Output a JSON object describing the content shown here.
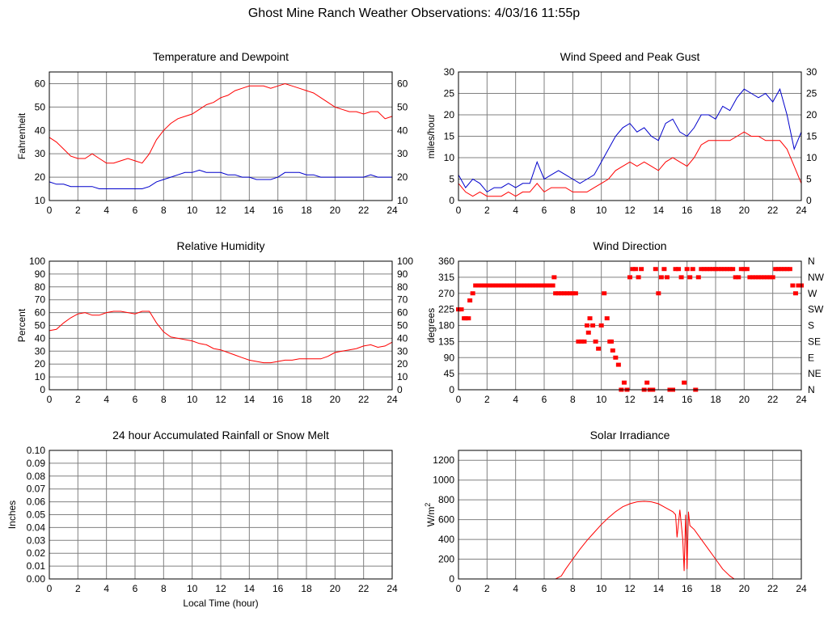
{
  "page": {
    "title": "Ghost Mine Ranch Weather Observations: 4/03/16 11:55p"
  },
  "colors": {
    "grid": "#808080",
    "frame": "#000000",
    "red": "#ff0000",
    "blue": "#0000cc"
  },
  "chart_data": [
    {
      "id": "temp",
      "type": "line",
      "title": "Temperature and Dewpoint",
      "xlabel": "",
      "ylabel": "Fahrenheit",
      "x_ticks": [
        0,
        2,
        4,
        6,
        8,
        10,
        12,
        14,
        16,
        18,
        20,
        22,
        24
      ],
      "y_ticks": [
        10,
        20,
        30,
        40,
        50,
        60
      ],
      "xlim": [
        0,
        24
      ],
      "ylim": [
        10,
        65
      ],
      "right_axis_ticks": [
        10,
        20,
        30,
        40,
        50,
        60
      ],
      "grid": true,
      "series": [
        {
          "color": "#ff0000",
          "x": [
            0,
            0.5,
            1,
            1.5,
            2,
            2.5,
            3,
            3.5,
            4,
            4.5,
            5,
            5.5,
            6,
            6.5,
            7,
            7.5,
            8,
            8.5,
            9,
            9.5,
            10,
            10.5,
            11,
            11.5,
            12,
            12.5,
            13,
            13.5,
            14,
            14.5,
            15,
            15.5,
            16,
            16.5,
            17,
            17.5,
            18,
            18.5,
            19,
            19.5,
            20,
            20.5,
            21,
            21.5,
            22,
            22.5,
            23,
            23.5,
            24
          ],
          "y": [
            37,
            35,
            32,
            29,
            28,
            28,
            30,
            28,
            26,
            26,
            27,
            28,
            27,
            26,
            30,
            36,
            40,
            43,
            45,
            46,
            47,
            49,
            51,
            52,
            54,
            55,
            57,
            58,
            59,
            59,
            59,
            58,
            59,
            60,
            59,
            58,
            57,
            56,
            54,
            52,
            50,
            49,
            48,
            48,
            47,
            48,
            48,
            45,
            46
          ]
        },
        {
          "color": "#0000cc",
          "x": [
            0,
            0.5,
            1,
            1.5,
            2,
            2.5,
            3,
            3.5,
            4,
            4.5,
            5,
            5.5,
            6,
            6.5,
            7,
            7.5,
            8,
            8.5,
            9,
            9.5,
            10,
            10.5,
            11,
            11.5,
            12,
            12.5,
            13,
            13.5,
            14,
            14.5,
            15,
            15.5,
            16,
            16.5,
            17,
            17.5,
            18,
            18.5,
            19,
            19.5,
            20,
            20.5,
            21,
            21.5,
            22,
            22.5,
            23,
            23.5,
            24
          ],
          "y": [
            18,
            17,
            17,
            16,
            16,
            16,
            16,
            15,
            15,
            15,
            15,
            15,
            15,
            15,
            16,
            18,
            19,
            20,
            21,
            22,
            22,
            23,
            22,
            22,
            22,
            21,
            21,
            20,
            20,
            19,
            19,
            19,
            20,
            22,
            22,
            22,
            21,
            21,
            20,
            20,
            20,
            20,
            20,
            20,
            20,
            21,
            20,
            20,
            20
          ]
        }
      ]
    },
    {
      "id": "wind",
      "type": "line",
      "title": "Wind Speed and Peak Gust",
      "xlabel": "",
      "ylabel": "miles/hour",
      "x_ticks": [
        0,
        2,
        4,
        6,
        8,
        10,
        12,
        14,
        16,
        18,
        20,
        22,
        24
      ],
      "y_ticks": [
        0,
        5,
        10,
        15,
        20,
        25,
        30
      ],
      "xlim": [
        0,
        24
      ],
      "ylim": [
        0,
        30
      ],
      "right_axis_ticks": [
        0,
        5,
        10,
        15,
        20,
        25,
        30
      ],
      "grid": true,
      "series": [
        {
          "color": "#0000cc",
          "x": [
            0,
            0.5,
            1,
            1.5,
            2,
            2.5,
            3,
            3.5,
            4,
            4.5,
            5,
            5.5,
            6,
            6.5,
            7,
            7.5,
            8,
            8.5,
            9,
            9.5,
            10,
            10.5,
            11,
            11.5,
            12,
            12.5,
            13,
            13.5,
            14,
            14.5,
            15,
            15.5,
            16,
            16.5,
            17,
            17.5,
            18,
            18.5,
            19,
            19.5,
            20,
            20.5,
            21,
            21.5,
            22,
            22.5,
            23,
            23.5,
            24
          ],
          "y": [
            6,
            3,
            5,
            4,
            2,
            3,
            3,
            4,
            3,
            4,
            4,
            9,
            5,
            6,
            7,
            6,
            5,
            4,
            5,
            6,
            9,
            12,
            15,
            17,
            18,
            16,
            17,
            15,
            14,
            18,
            19,
            16,
            15,
            17,
            20,
            20,
            19,
            22,
            21,
            24,
            26,
            25,
            24,
            25,
            23,
            26,
            20,
            12,
            16
          ]
        },
        {
          "color": "#ff0000",
          "x": [
            0,
            0.5,
            1,
            1.5,
            2,
            2.5,
            3,
            3.5,
            4,
            4.5,
            5,
            5.5,
            6,
            6.5,
            7,
            7.5,
            8,
            8.5,
            9,
            9.5,
            10,
            10.5,
            11,
            11.5,
            12,
            12.5,
            13,
            13.5,
            14,
            14.5,
            15,
            15.5,
            16,
            16.5,
            17,
            17.5,
            18,
            18.5,
            19,
            19.5,
            20,
            20.5,
            21,
            21.5,
            22,
            22.5,
            23,
            23.5,
            24
          ],
          "y": [
            4,
            2,
            1,
            2,
            1,
            1,
            1,
            2,
            1,
            2,
            2,
            4,
            2,
            3,
            3,
            3,
            2,
            2,
            2,
            3,
            4,
            5,
            7,
            8,
            9,
            8,
            9,
            8,
            7,
            9,
            10,
            9,
            8,
            10,
            13,
            14,
            14,
            14,
            14,
            15,
            16,
            15,
            15,
            14,
            14,
            14,
            12,
            8,
            4
          ]
        }
      ]
    },
    {
      "id": "rh",
      "type": "line",
      "title": "Relative Humidity",
      "xlabel": "",
      "ylabel": "Percent",
      "x_ticks": [
        0,
        2,
        4,
        6,
        8,
        10,
        12,
        14,
        16,
        18,
        20,
        22,
        24
      ],
      "y_ticks": [
        0,
        10,
        20,
        30,
        40,
        50,
        60,
        70,
        80,
        90,
        100
      ],
      "xlim": [
        0,
        24
      ],
      "ylim": [
        0,
        100
      ],
      "right_axis_ticks": [
        0,
        10,
        20,
        30,
        40,
        50,
        60,
        70,
        80,
        90,
        100
      ],
      "grid": true,
      "series": [
        {
          "color": "#ff0000",
          "x": [
            0,
            0.5,
            1,
            1.5,
            2,
            2.5,
            3,
            3.5,
            4,
            4.5,
            5,
            5.5,
            6,
            6.5,
            7,
            7.5,
            8,
            8.5,
            9,
            9.5,
            10,
            10.5,
            11,
            11.5,
            12,
            12.5,
            13,
            13.5,
            14,
            14.5,
            15,
            15.5,
            16,
            16.5,
            17,
            17.5,
            18,
            18.5,
            19,
            19.5,
            20,
            20.5,
            21,
            21.5,
            22,
            22.5,
            23,
            23.5,
            24
          ],
          "y": [
            46,
            47,
            52,
            56,
            59,
            60,
            58,
            58,
            60,
            61,
            61,
            60,
            59,
            61,
            61,
            52,
            45,
            41,
            40,
            39,
            38,
            36,
            35,
            32,
            31,
            29,
            27,
            25,
            23,
            22,
            21,
            21,
            22,
            23,
            23,
            24,
            24,
            24,
            24,
            26,
            29,
            30,
            31,
            32,
            34,
            35,
            33,
            34,
            37
          ]
        }
      ]
    },
    {
      "id": "dir",
      "type": "scatter",
      "title": "Wind Direction",
      "xlabel": "",
      "ylabel": "degrees",
      "x_ticks": [
        0,
        2,
        4,
        6,
        8,
        10,
        12,
        14,
        16,
        18,
        20,
        22,
        24
      ],
      "y_ticks": [
        0,
        45,
        90,
        135,
        180,
        225,
        270,
        315,
        360
      ],
      "xlim": [
        0,
        24
      ],
      "ylim": [
        0,
        360
      ],
      "right_axis_labels": [
        "N",
        "NE",
        "E",
        "SE",
        "S",
        "SW",
        "W",
        "NW",
        "N"
      ],
      "grid": true,
      "series": [
        {
          "color": "#ff0000",
          "x": [
            0,
            0.2,
            0.4,
            0.5,
            0.7,
            0.8,
            1.0,
            1.2,
            1.4,
            1.6,
            1.8,
            2.0,
            2.2,
            2.4,
            2.6,
            2.8,
            3.0,
            3.2,
            3.4,
            3.6,
            3.8,
            4.0,
            4.2,
            4.4,
            4.6,
            4.8,
            5.0,
            5.2,
            5.4,
            5.6,
            5.8,
            6.0,
            6.2,
            6.4,
            6.6,
            6.7,
            6.8,
            7.0,
            7.2,
            7.4,
            7.6,
            7.8,
            8.0,
            8.2,
            8.4,
            8.6,
            8.8,
            9.0,
            9.1,
            9.2,
            9.4,
            9.6,
            9.8,
            10.0,
            10.2,
            10.4,
            10.6,
            10.7,
            10.8,
            11.0,
            11.2,
            11.4,
            11.6,
            11.8,
            12.0,
            12.2,
            12.4,
            12.6,
            12.8,
            13.0,
            13.2,
            13.4,
            13.6,
            13.8,
            14.0,
            14.2,
            14.4,
            14.6,
            14.8,
            15.0,
            15.2,
            15.4,
            15.6,
            15.8,
            16.0,
            16.2,
            16.4,
            16.6,
            16.8,
            17.0,
            17.2,
            17.4,
            17.6,
            17.8,
            18.0,
            18.2,
            18.4,
            18.6,
            18.8,
            19.0,
            19.2,
            19.4,
            19.6,
            19.8,
            20.0,
            20.2,
            20.4,
            20.6,
            20.8,
            21.0,
            21.2,
            21.4,
            21.6,
            21.8,
            22.0,
            22.2,
            22.4,
            22.6,
            22.8,
            23.0,
            23.2,
            23.4,
            23.6,
            23.8,
            24.0
          ],
          "y": [
            225,
            225,
            200,
            200,
            200,
            250,
            270,
            292,
            292,
            292,
            292,
            292,
            292,
            292,
            292,
            292,
            292,
            292,
            292,
            292,
            292,
            292,
            292,
            292,
            292,
            292,
            292,
            292,
            292,
            292,
            292,
            292,
            292,
            292,
            292,
            315,
            270,
            270,
            270,
            270,
            270,
            270,
            270,
            270,
            135,
            135,
            135,
            180,
            160,
            200,
            180,
            135,
            115,
            180,
            270,
            200,
            135,
            135,
            110,
            90,
            70,
            0,
            20,
            0,
            315,
            338,
            338,
            315,
            338,
            0,
            20,
            0,
            0,
            338,
            270,
            315,
            338,
            315,
            0,
            0,
            338,
            338,
            315,
            20,
            338,
            315,
            338,
            0,
            315,
            338,
            338,
            338,
            338,
            338,
            338,
            338,
            338,
            338,
            338,
            338,
            338,
            315,
            315,
            338,
            338,
            338,
            315,
            315,
            315,
            315,
            315,
            315,
            315,
            315,
            315,
            338,
            338,
            338,
            338,
            338,
            338,
            292,
            270,
            292,
            292
          ]
        }
      ]
    },
    {
      "id": "rain",
      "type": "line",
      "title": "24 hour Accumulated Rainfall or Snow Melt",
      "xlabel": "Local Time (hour)",
      "ylabel": "Inches",
      "x_ticks": [
        0,
        2,
        4,
        6,
        8,
        10,
        12,
        14,
        16,
        18,
        20,
        22,
        24
      ],
      "y_ticks": [
        "0.00",
        "0.01",
        "0.02",
        "0.03",
        "0.04",
        "0.05",
        "0.06",
        "0.07",
        "0.08",
        "0.09",
        "0.10"
      ],
      "xlim": [
        0,
        24
      ],
      "ylim": [
        0,
        0.1
      ],
      "grid": true,
      "series": [
        {
          "color": "#ff0000",
          "x": [
            0,
            24
          ],
          "y": [
            0,
            0
          ]
        }
      ]
    },
    {
      "id": "solar",
      "type": "line",
      "title": "Solar Irradiance",
      "xlabel": "",
      "ylabel": "W/m",
      "ylabel_sup": "2",
      "x_ticks": [
        0,
        2,
        4,
        6,
        8,
        10,
        12,
        14,
        16,
        18,
        20,
        22,
        24
      ],
      "y_ticks": [
        0,
        200,
        400,
        600,
        800,
        1000,
        1200
      ],
      "xlim": [
        0,
        24
      ],
      "ylim": [
        0,
        1300
      ],
      "grid": true,
      "series": [
        {
          "color": "#ff0000",
          "x": [
            0,
            6.8,
            7.2,
            7.5,
            8,
            8.5,
            9,
            9.5,
            10,
            10.5,
            11,
            11.5,
            12,
            12.5,
            13,
            13.5,
            14,
            14.5,
            15,
            15.2,
            15.3,
            15.5,
            15.7,
            15.8,
            15.9,
            16.0,
            16.1,
            16.2,
            16.5,
            17,
            17.5,
            18,
            18.5,
            19,
            19.3,
            20,
            24
          ],
          "y": [
            0,
            0,
            30,
            100,
            200,
            300,
            390,
            470,
            550,
            620,
            680,
            730,
            760,
            780,
            785,
            780,
            760,
            720,
            680,
            650,
            420,
            700,
            400,
            80,
            650,
            100,
            680,
            540,
            500,
            400,
            300,
            200,
            100,
            30,
            0,
            0,
            0
          ]
        }
      ]
    }
  ]
}
